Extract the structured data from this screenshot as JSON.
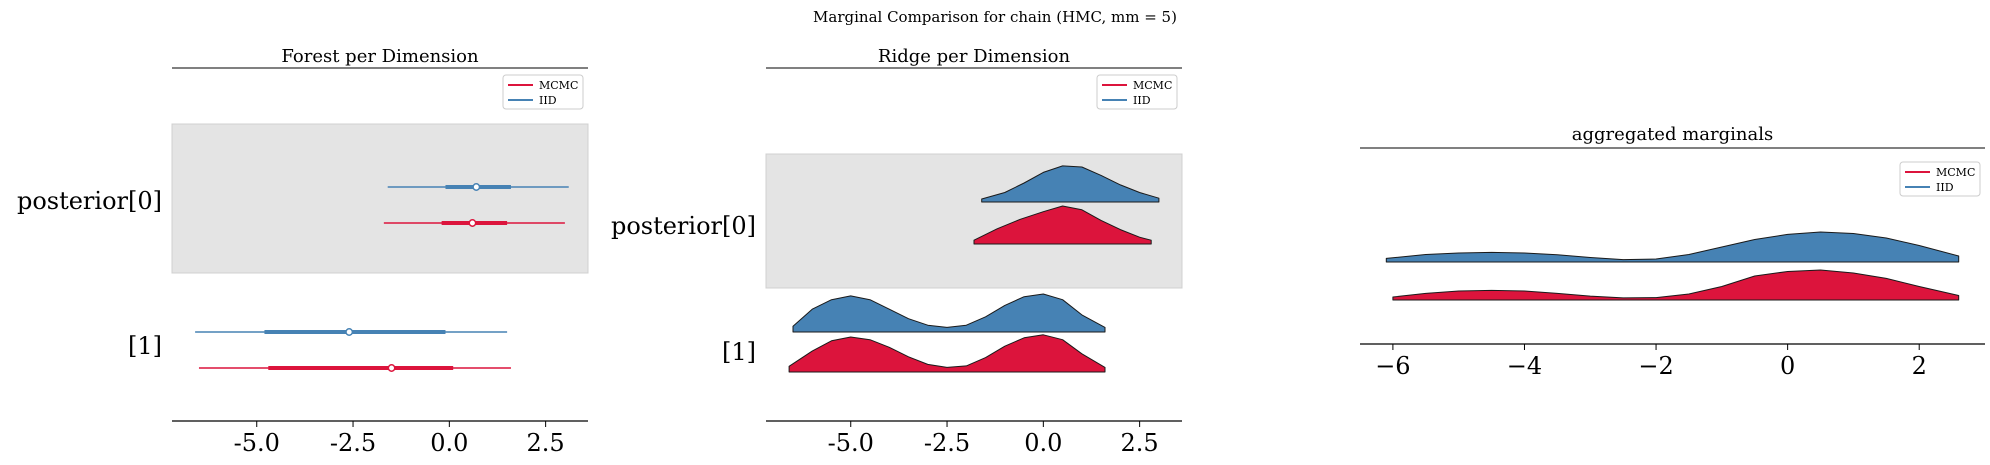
{
  "suptitle": "Marginal Comparison for chain (HMC, mm = 5)",
  "colors": {
    "mcmc": "#dc143c",
    "iid": "#4682b4",
    "mcmc_dark": "#c8102e",
    "iid_dark": "#3a70a0",
    "band": "#e4e4e4"
  },
  "chart_data": [
    {
      "type": "forest",
      "title": "Forest per Dimension",
      "xlim": [
        -7.2,
        3.6
      ],
      "xticks": [
        "-5.0",
        "-2.5",
        "0.0",
        "2.5"
      ],
      "xtick_values": [
        -5.0,
        -2.5,
        0.0,
        2.5
      ],
      "legend": {
        "placement": "top-right",
        "entries": [
          "MCMC",
          "IID"
        ]
      },
      "rows": [
        "posterior[0]",
        "[1]"
      ],
      "series": [
        {
          "name": "IID",
          "color_key": "iid",
          "points": [
            {
              "row": 0,
              "hdi_low": -1.6,
              "hdi_high": 3.1,
              "iqr_low": -0.1,
              "iqr_high": 1.6,
              "median": 0.7
            },
            {
              "row": 1,
              "hdi_low": -6.6,
              "hdi_high": 1.5,
              "iqr_low": -4.8,
              "iqr_high": -0.1,
              "median": -2.6
            }
          ]
        },
        {
          "name": "MCMC",
          "color_key": "mcmc",
          "points": [
            {
              "row": 0,
              "hdi_low": -1.7,
              "hdi_high": 3.0,
              "iqr_low": -0.2,
              "iqr_high": 1.5,
              "median": 0.6
            },
            {
              "row": 1,
              "hdi_low": -6.5,
              "hdi_high": 1.6,
              "iqr_low": -4.7,
              "iqr_high": 0.1,
              "median": -1.5
            }
          ]
        }
      ]
    },
    {
      "type": "ridgeline",
      "title": "Ridge per Dimension",
      "xlim": [
        -7.2,
        3.6
      ],
      "xticks": [
        "-5.0",
        "-2.5",
        "0.0",
        "2.5"
      ],
      "xtick_values": [
        -5.0,
        -2.5,
        0.0,
        2.5
      ],
      "legend": {
        "placement": "top-right",
        "entries": [
          "MCMC",
          "IID"
        ]
      },
      "rows": [
        "posterior[0]",
        "[1]"
      ],
      "series": [
        {
          "name": "IID",
          "color_key": "iid",
          "ridges": [
            {
              "row": 0,
              "x": [
                -1.6,
                -1.0,
                -0.5,
                0.0,
                0.5,
                1.0,
                1.5,
                2.0,
                2.5,
                3.0
              ],
              "y": [
                0.08,
                0.25,
                0.5,
                0.78,
                0.95,
                0.92,
                0.7,
                0.45,
                0.25,
                0.1
              ]
            },
            {
              "row": 1,
              "x": [
                -6.5,
                -6.0,
                -5.5,
                -5.0,
                -4.5,
                -4.0,
                -3.5,
                -3.0,
                -2.5,
                -2.0,
                -1.5,
                -1.0,
                -0.5,
                0.0,
                0.5,
                1.0,
                1.6
              ],
              "y": [
                0.15,
                0.6,
                0.85,
                0.95,
                0.85,
                0.6,
                0.35,
                0.18,
                0.12,
                0.18,
                0.4,
                0.7,
                0.93,
                1.0,
                0.85,
                0.45,
                0.12
              ]
            }
          ]
        },
        {
          "name": "MCMC",
          "color_key": "mcmc",
          "ridges": [
            {
              "row": 0,
              "x": [
                -1.8,
                -1.2,
                -0.6,
                0.0,
                0.5,
                1.0,
                1.5,
                2.0,
                2.5,
                2.8
              ],
              "y": [
                0.1,
                0.4,
                0.65,
                0.85,
                1.0,
                0.9,
                0.62,
                0.38,
                0.18,
                0.1
              ]
            },
            {
              "row": 1,
              "x": [
                -6.6,
                -6.0,
                -5.5,
                -5.0,
                -4.5,
                -4.0,
                -3.5,
                -3.0,
                -2.5,
                -2.0,
                -1.5,
                -1.0,
                -0.5,
                0.0,
                0.5,
                1.0,
                1.6
              ],
              "y": [
                0.15,
                0.55,
                0.82,
                0.92,
                0.85,
                0.65,
                0.4,
                0.2,
                0.12,
                0.16,
                0.38,
                0.68,
                0.9,
                0.98,
                0.85,
                0.48,
                0.12
              ]
            }
          ]
        }
      ]
    },
    {
      "type": "ridgeline",
      "title": "aggregated marginals",
      "xlim": [
        -6.5,
        3.0
      ],
      "xticks": [
        "−6",
        "−4",
        "−2",
        "0",
        "2"
      ],
      "xtick_values": [
        -6,
        -4,
        -2,
        0,
        2
      ],
      "legend": {
        "placement": "top-right",
        "entries": [
          "MCMC",
          "IID"
        ]
      },
      "series": [
        {
          "name": "IID",
          "color_key": "iid",
          "ridges": [
            {
              "row": 0,
              "x": [
                -6.1,
                -5.5,
                -5.0,
                -4.5,
                -4.0,
                -3.5,
                -3.0,
                -2.5,
                -2.0,
                -1.5,
                -1.0,
                -0.5,
                0.0,
                0.5,
                1.0,
                1.5,
                2.0,
                2.6
              ],
              "y": [
                0.12,
                0.25,
                0.3,
                0.32,
                0.3,
                0.24,
                0.15,
                0.08,
                0.1,
                0.25,
                0.5,
                0.75,
                0.92,
                1.0,
                0.95,
                0.8,
                0.55,
                0.2
              ]
            }
          ]
        },
        {
          "name": "MCMC",
          "color_key": "mcmc",
          "ridges": [
            {
              "row": 0,
              "x": [
                -6.0,
                -5.5,
                -5.0,
                -4.5,
                -4.0,
                -3.5,
                -3.0,
                -2.5,
                -2.0,
                -1.5,
                -1.0,
                -0.5,
                0.0,
                0.5,
                1.0,
                1.5,
                2.0,
                2.6
              ],
              "y": [
                0.1,
                0.22,
                0.3,
                0.32,
                0.3,
                0.22,
                0.13,
                0.07,
                0.08,
                0.2,
                0.45,
                0.8,
                0.95,
                1.0,
                0.9,
                0.72,
                0.45,
                0.15
              ]
            }
          ]
        }
      ]
    }
  ]
}
